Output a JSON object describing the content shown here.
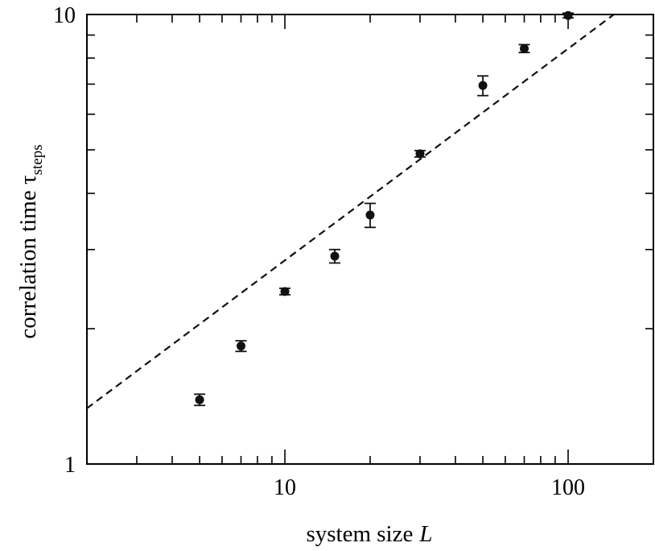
{
  "chart_data": {
    "type": "scatter",
    "xlabel": "system size",
    "xlabel_symbol": "L",
    "ylabel": "correlation time τ",
    "ylabel_subscript": "steps",
    "x_scale": "log",
    "y_scale": "log",
    "xlim": [
      2,
      200
    ],
    "ylim": [
      1,
      10
    ],
    "x_ticks": [
      {
        "value": 10,
        "label": "10"
      },
      {
        "value": 100,
        "label": "100"
      }
    ],
    "y_ticks": [
      {
        "value": 1,
        "label": "1"
      },
      {
        "value": 10,
        "label": "10"
      }
    ],
    "grid": false,
    "legend": "none",
    "series": [
      {
        "style": "points-with-errorbars",
        "color": "#111111",
        "x": [
          5,
          7,
          10,
          15,
          20,
          30,
          50,
          70,
          100
        ],
        "y": [
          1.39,
          1.83,
          2.42,
          2.9,
          3.58,
          4.9,
          6.95,
          8.4,
          9.95
        ],
        "y_err": [
          0.04,
          0.05,
          0.04,
          0.1,
          0.22,
          0.08,
          0.35,
          0.17,
          0.12
        ]
      },
      {
        "style": "dashed-fit-line",
        "color": "#111111",
        "x": [
          2,
          145
        ],
        "y": [
          1.33,
          10
        ]
      }
    ]
  }
}
